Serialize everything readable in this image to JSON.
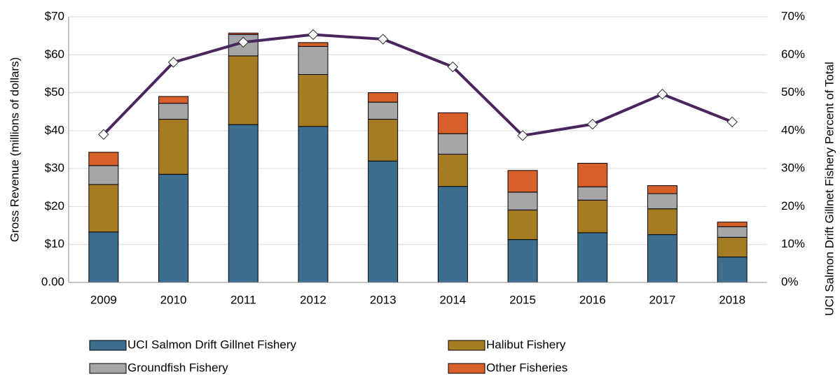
{
  "chart_data": {
    "type": "stacked_bar_line",
    "categories": [
      "2009",
      "2010",
      "2011",
      "2012",
      "2013",
      "2014",
      "2015",
      "2016",
      "2017",
      "2018"
    ],
    "series": [
      {
        "name": "UCI Salmon Drift Gillnet Fishery",
        "color": "#3b6e8f",
        "values": [
          13.3,
          28.5,
          41.6,
          41.1,
          32.0,
          25.3,
          11.3,
          13.1,
          12.6,
          6.7
        ]
      },
      {
        "name": "Halibut Fishery",
        "color": "#a67c23",
        "values": [
          12.5,
          14.5,
          18.1,
          13.7,
          11.0,
          8.5,
          7.8,
          8.6,
          6.8,
          5.2
        ]
      },
      {
        "name": "Groundfish Fishery",
        "color": "#a6a6a9",
        "values": [
          5.0,
          4.2,
          5.6,
          7.4,
          4.5,
          5.4,
          4.7,
          3.5,
          4.0,
          2.8
        ]
      },
      {
        "name": "Other Fisheries",
        "color": "#d65f2a",
        "values": [
          3.5,
          1.8,
          0.4,
          1.0,
          2.5,
          5.5,
          5.7,
          6.2,
          2.1,
          1.2
        ]
      }
    ],
    "line": {
      "color": "#4b2560",
      "axis": "y2",
      "values": [
        39.0,
        58.0,
        63.3,
        65.3,
        64.1,
        56.8,
        38.7,
        41.7,
        49.6,
        42.3
      ]
    },
    "y_label": "Gross Revenue (millions of dollars)",
    "y2_label": "UCI Salmon Drift Gillnet Fishery Percent of Total",
    "ylim": [
      0,
      70
    ],
    "yticks": [
      {
        "value": 0,
        "label": "0.00"
      },
      {
        "value": 10,
        "label": "$10"
      },
      {
        "value": 20,
        "label": "$20"
      },
      {
        "value": 30,
        "label": "$30"
      },
      {
        "value": 40,
        "label": "$40"
      },
      {
        "value": 50,
        "label": "$50"
      },
      {
        "value": 60,
        "label": "$60"
      },
      {
        "value": 70,
        "label": "$70"
      }
    ],
    "y2lim": [
      0,
      70
    ],
    "y2ticks": [
      {
        "value": 0,
        "label": "0%"
      },
      {
        "value": 10,
        "label": "10%"
      },
      {
        "value": 20,
        "label": "20%"
      },
      {
        "value": 30,
        "label": "30%"
      },
      {
        "value": 40,
        "label": "40%"
      },
      {
        "value": 50,
        "label": "50%"
      },
      {
        "value": 60,
        "label": "60%"
      },
      {
        "value": 70,
        "label": "70%"
      }
    ],
    "grid": true,
    "legend": "bottom"
  }
}
